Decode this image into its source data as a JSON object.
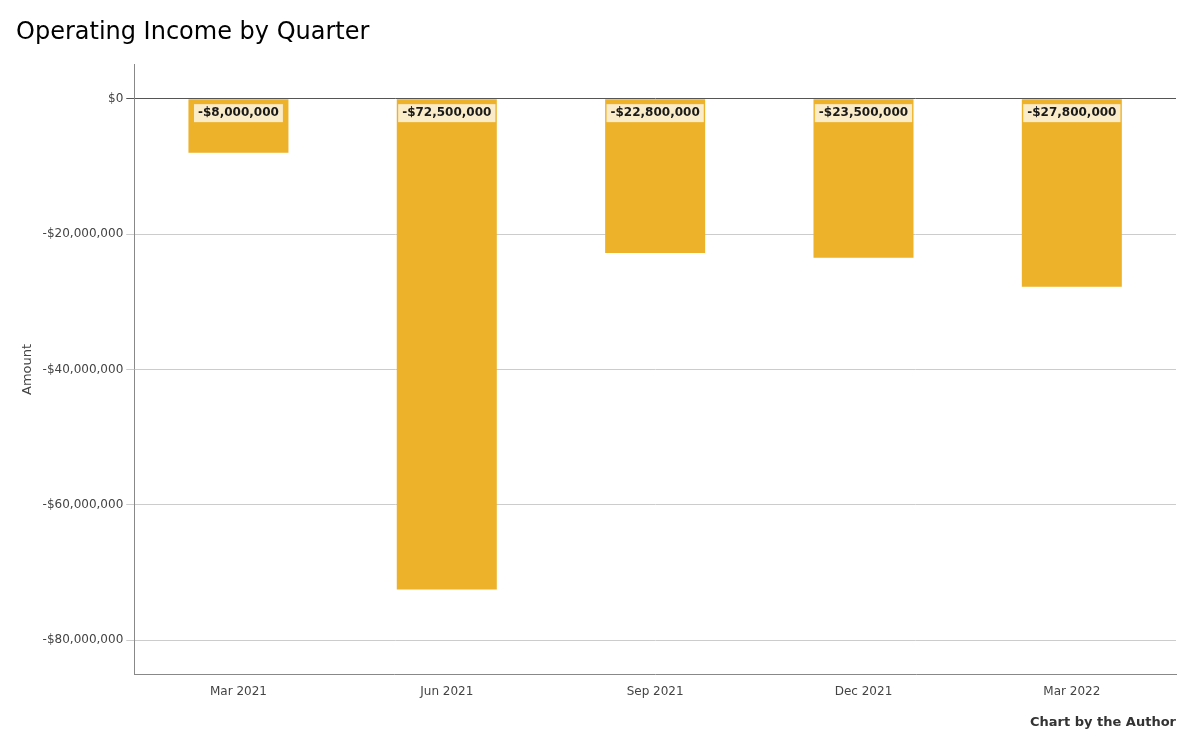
{
  "chart_data": {
    "type": "bar",
    "title": "Operating Income by Quarter",
    "categories": [
      "Mar 2021",
      "Jun 2021",
      "Sep 2021",
      "Dec 2021",
      "Mar 2022"
    ],
    "values": [
      -8000000,
      -72500000,
      -22800000,
      -23500000,
      -27800000
    ],
    "value_labels": [
      "-$8,000,000",
      "-$72,500,000",
      "-$22,800,000",
      "-$23,500,000",
      "-$27,800,000"
    ],
    "data_labels": true,
    "color": "#EDB229",
    "ylabel": "Amount",
    "ylim": [
      -85000000,
      5000000
    ],
    "yticks": [
      {
        "value": 0,
        "label": "$0"
      },
      {
        "value": -20000000,
        "label": "-$20,000,000"
      },
      {
        "value": -40000000,
        "label": "-$40,000,000"
      },
      {
        "value": -60000000,
        "label": "-$60,000,000"
      },
      {
        "value": -80000000,
        "label": "-$80,000,000"
      }
    ],
    "grid": true,
    "annotation": "Chart by the Author"
  }
}
